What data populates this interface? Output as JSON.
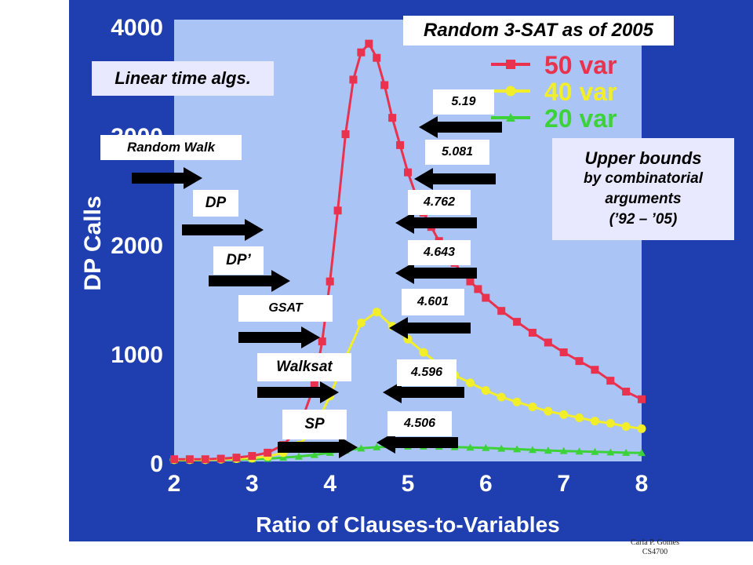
{
  "colors": {
    "background": "#1f3fb0",
    "plot_bg": "#a9c4f5",
    "series_50": "#e8324e",
    "series_40": "#f2ee2a",
    "series_20": "#3ed23a",
    "arrow": "#000000"
  },
  "slide": {
    "title": "Random 3-SAT as of 2005",
    "linear_title": "Linear time algs.",
    "upper_bounds": {
      "line1": "Upper bounds",
      "line2": "by combinatorial",
      "line3": "arguments",
      "line4": "(’92 – ’05)"
    },
    "algorithms": [
      "Random Walk",
      "DP",
      "DP’",
      "GSAT",
      "Walksat",
      "SP"
    ],
    "bounds": [
      "5.19",
      "5.081",
      "4.762",
      "4.643",
      "4.601",
      "4.596",
      "4.506"
    ],
    "credit_line1": "Carla P. Gomes",
    "credit_line2": "CS4700"
  },
  "chart_data": {
    "type": "line",
    "xlabel": "Ratio of Clauses-to-Variables",
    "ylabel": "DP Calls",
    "xlim": [
      2,
      8
    ],
    "ylim": [
      0,
      4000
    ],
    "x_ticks": [
      2,
      3,
      4,
      5,
      6,
      7,
      8
    ],
    "y_ticks": [
      0,
      1000,
      2000,
      3000,
      4000
    ],
    "grid": false,
    "legend_position": "top-right",
    "series": [
      {
        "name": "50 var",
        "x": [
          2.0,
          2.2,
          2.4,
          2.6,
          2.8,
          3.0,
          3.2,
          3.4,
          3.6,
          3.8,
          3.9,
          4.0,
          4.1,
          4.2,
          4.3,
          4.4,
          4.5,
          4.6,
          4.7,
          4.8,
          4.9,
          5.0,
          5.1,
          5.2,
          5.3,
          5.4,
          5.5,
          5.6,
          5.7,
          5.8,
          5.9,
          6.0,
          6.2,
          6.4,
          6.6,
          6.8,
          7.0,
          7.2,
          7.4,
          7.6,
          7.8,
          8.0
        ],
        "y": [
          20,
          20,
          20,
          25,
          35,
          50,
          80,
          150,
          300,
          700,
          1100,
          1650,
          2300,
          3000,
          3500,
          3750,
          3830,
          3700,
          3450,
          3150,
          2900,
          2650,
          2450,
          2280,
          2150,
          2020,
          1920,
          1820,
          1720,
          1650,
          1580,
          1500,
          1380,
          1280,
          1180,
          1090,
          1000,
          920,
          840,
          740,
          640,
          570
        ]
      },
      {
        "name": "40 var",
        "x": [
          2.0,
          2.2,
          2.4,
          2.6,
          2.8,
          3.0,
          3.2,
          3.4,
          3.6,
          3.8,
          4.0,
          4.2,
          4.4,
          4.6,
          4.8,
          5.0,
          5.2,
          5.4,
          5.6,
          5.8,
          6.0,
          6.2,
          6.4,
          6.6,
          6.8,
          7.0,
          7.2,
          7.4,
          7.6,
          7.8,
          8.0
        ],
        "y": [
          15,
          15,
          15,
          20,
          25,
          30,
          45,
          80,
          150,
          300,
          600,
          950,
          1270,
          1370,
          1240,
          1120,
          1000,
          890,
          790,
          720,
          650,
          590,
          545,
          500,
          460,
          430,
          400,
          370,
          350,
          320,
          300
        ]
      },
      {
        "name": "20 var",
        "x": [
          2.0,
          2.2,
          2.4,
          2.6,
          2.8,
          3.0,
          3.2,
          3.4,
          3.6,
          3.8,
          4.0,
          4.2,
          4.4,
          4.6,
          4.8,
          5.0,
          5.2,
          5.4,
          5.6,
          5.8,
          6.0,
          6.2,
          6.4,
          6.6,
          6.8,
          7.0,
          7.2,
          7.4,
          7.6,
          7.8,
          8.0
        ],
        "y": [
          10,
          10,
          12,
          15,
          18,
          20,
          25,
          35,
          45,
          60,
          80,
          100,
          120,
          130,
          135,
          138,
          138,
          136,
          132,
          128,
          124,
          118,
          112,
          106,
          100,
          96,
          92,
          88,
          84,
          80,
          78
        ]
      }
    ]
  }
}
